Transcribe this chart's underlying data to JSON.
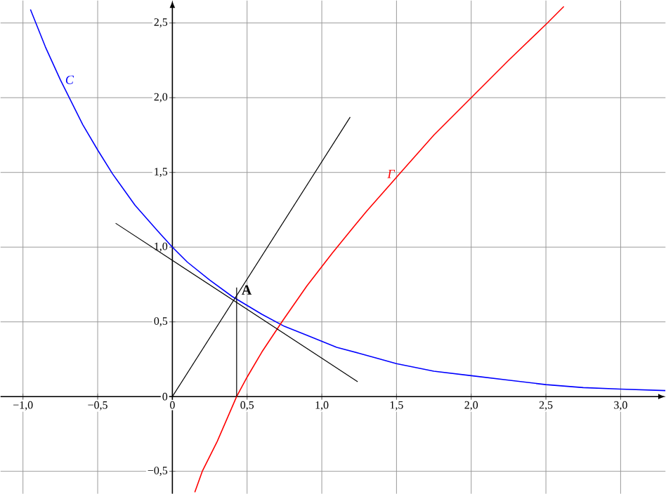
{
  "chart_data": {
    "type": "line",
    "xlim": [
      -1.15,
      3.3
    ],
    "ylim": [
      -0.65,
      2.65
    ],
    "xticks": [
      {
        "value": -1,
        "label": "−1,0"
      },
      {
        "value": -0.5,
        "label": "−0,5"
      },
      0,
      {
        "value": 0.5,
        "label": "0,5"
      },
      {
        "value": 1,
        "label": "1,0"
      },
      {
        "value": 1.5,
        "label": "1,5"
      },
      {
        "value": 2,
        "label": "2,0"
      },
      {
        "value": 2.5,
        "label": "2,5"
      },
      {
        "value": 3,
        "label": "3,0"
      }
    ],
    "yticks": [
      {
        "value": -0.5,
        "label": "−0,5"
      },
      0,
      {
        "value": 0.5,
        "label": "0,5"
      },
      {
        "value": 1,
        "label": "1,0"
      },
      {
        "value": 1.5,
        "label": "1,5"
      },
      {
        "value": 2,
        "label": "2,0"
      },
      {
        "value": 2.5,
        "label": "2,5"
      }
    ],
    "grid": true,
    "series": [
      {
        "name": "C",
        "color": "#0000ff",
        "x": [
          -0.95,
          -0.85,
          -0.75,
          -0.6,
          -0.5,
          -0.4,
          -0.25,
          -0.1,
          0,
          0.1,
          0.25,
          0.4,
          0.5,
          0.6,
          0.75,
          0.9,
          1,
          1.1,
          1.25,
          1.5,
          1.75,
          2,
          2.25,
          2.5,
          2.75,
          3,
          3.3
        ],
        "values": [
          2.59,
          2.34,
          2.12,
          1.82,
          1.65,
          1.49,
          1.28,
          1.11,
          1.0,
          0.9,
          0.78,
          0.67,
          0.61,
          0.55,
          0.47,
          0.41,
          0.37,
          0.33,
          0.29,
          0.22,
          0.17,
          0.14,
          0.11,
          0.08,
          0.06,
          0.05,
          0.04
        ]
      },
      {
        "name": "Γ",
        "color": "#ff0000",
        "x": [
          0.15,
          0.2,
          0.3,
          0.43,
          0.5,
          0.6,
          0.74,
          0.9,
          1.07,
          1.2,
          1.3,
          1.52,
          1.75,
          2.0,
          2.25,
          2.51,
          2.62
        ],
        "values": [
          -0.64,
          -0.5,
          -0.3,
          0.0,
          0.13,
          0.3,
          0.51,
          0.74,
          0.96,
          1.12,
          1.24,
          1.49,
          1.75,
          2.0,
          2.25,
          2.5,
          2.61
        ]
      },
      {
        "color": "#000000",
        "x": [
          -0.38,
          1.24
        ],
        "values": [
          1.16,
          0.1
        ]
      },
      {
        "color": "#000000",
        "x": [
          0,
          1.19
        ],
        "values": [
          0,
          1.87
        ]
      },
      {
        "color": "#000000",
        "x": [
          0.43,
          0.43
        ],
        "values": [
          0,
          0.73
        ]
      }
    ],
    "annotations": [
      {
        "text": "A",
        "x": 0.43,
        "y": 0.65
      }
    ]
  }
}
